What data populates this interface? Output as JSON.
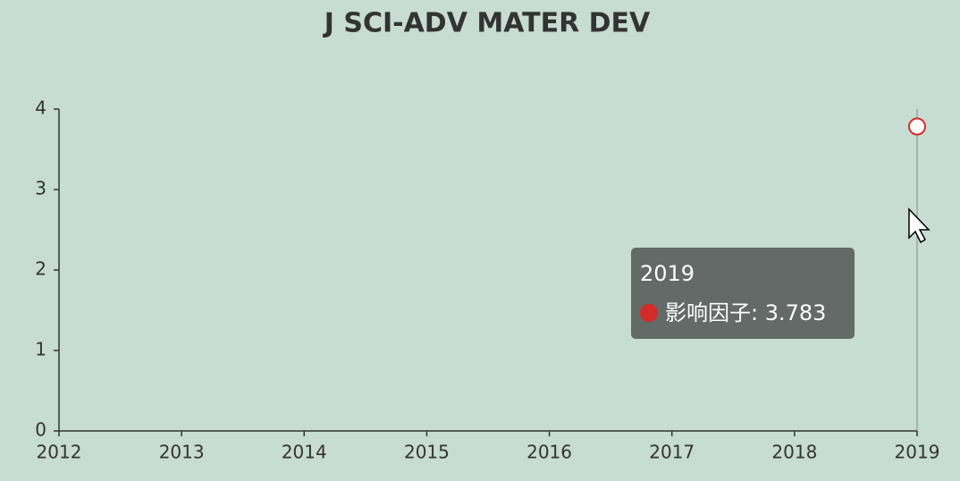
{
  "chart_data": {
    "type": "line",
    "title": "J SCI-ADV MATER DEV",
    "categories": [
      "2012",
      "2013",
      "2014",
      "2015",
      "2016",
      "2017",
      "2018",
      "2019"
    ],
    "series": [
      {
        "name": "影响因子",
        "color": "#d42a2a",
        "values": [
          null,
          null,
          null,
          null,
          null,
          null,
          null,
          3.783
        ]
      }
    ],
    "ylim": [
      0,
      4
    ],
    "yticks": [
      0,
      1,
      2,
      3,
      4
    ],
    "grid": false,
    "tooltip": {
      "title": "2019",
      "text": "影响因子: 3.783"
    }
  }
}
